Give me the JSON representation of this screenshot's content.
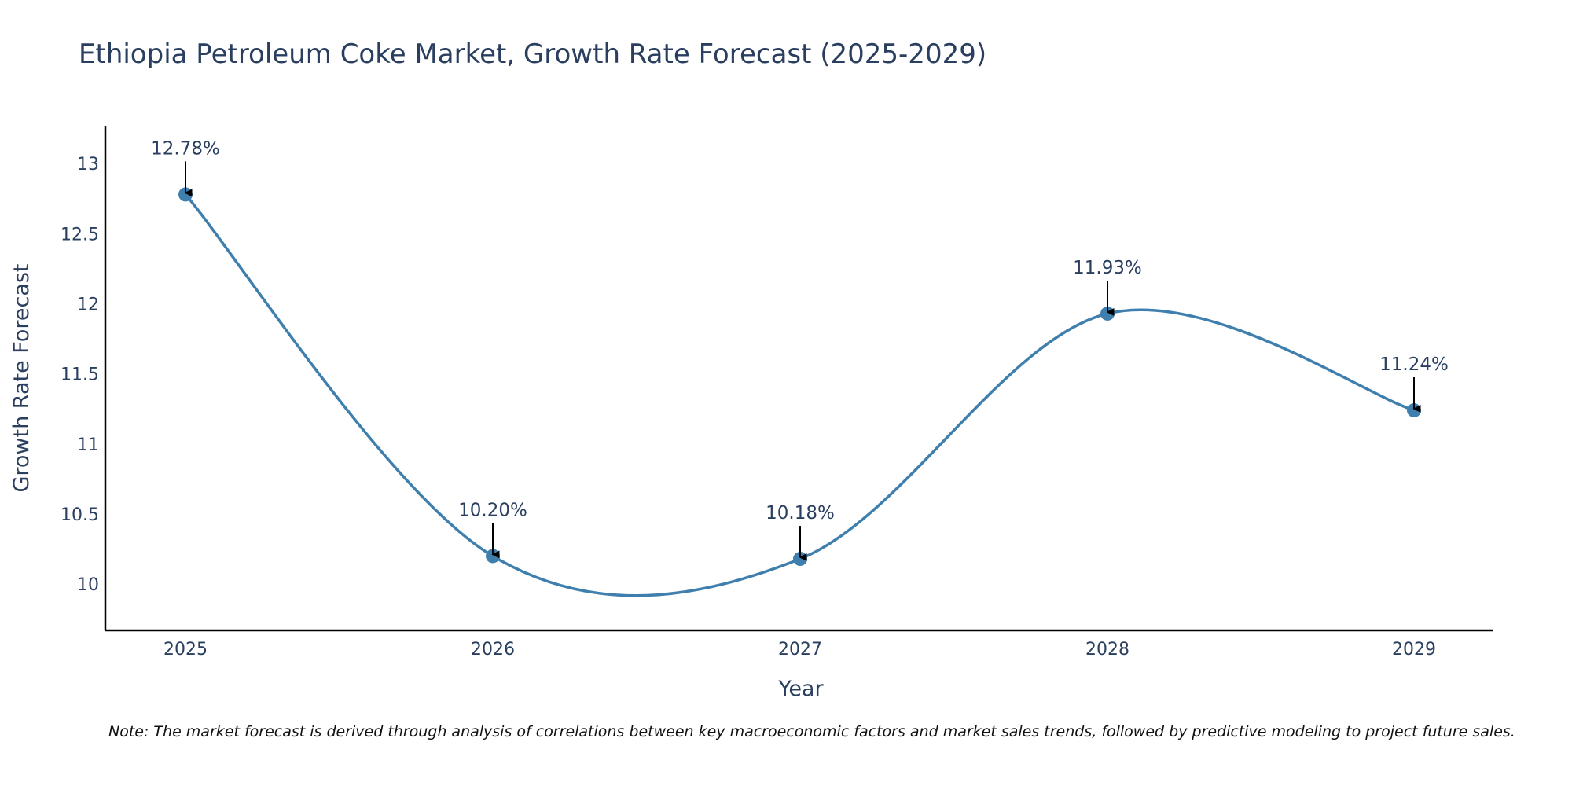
{
  "chart_data": {
    "type": "line",
    "title": "Ethiopia Petroleum Coke Market, Growth Rate Forecast (2025-2029)",
    "xlabel": "Year",
    "ylabel": "Growth Rate Forecast",
    "categories": [
      "2025",
      "2026",
      "2027",
      "2028",
      "2029"
    ],
    "values": [
      12.78,
      10.2,
      10.18,
      11.93,
      11.24
    ],
    "data_labels": [
      "12.78%",
      "10.20%",
      "10.18%",
      "11.93%",
      "11.24%"
    ],
    "yticks": [
      10,
      10.5,
      11,
      11.5,
      12,
      12.5,
      13
    ],
    "ytick_labels": [
      "10",
      "10.5",
      "11",
      "11.5",
      "12",
      "12.5",
      "13"
    ],
    "ylim": [
      9.67,
      13.27
    ],
    "line_shape": "spline",
    "line_color": "#3f7fae",
    "marker_color": "#3f7fae",
    "text_color": "#2a3f5f",
    "grid": false
  },
  "note": "Note: The market forecast is derived through analysis of correlations between key macroeconomic factors and market sales trends, followed by predictive modeling to project future sales."
}
